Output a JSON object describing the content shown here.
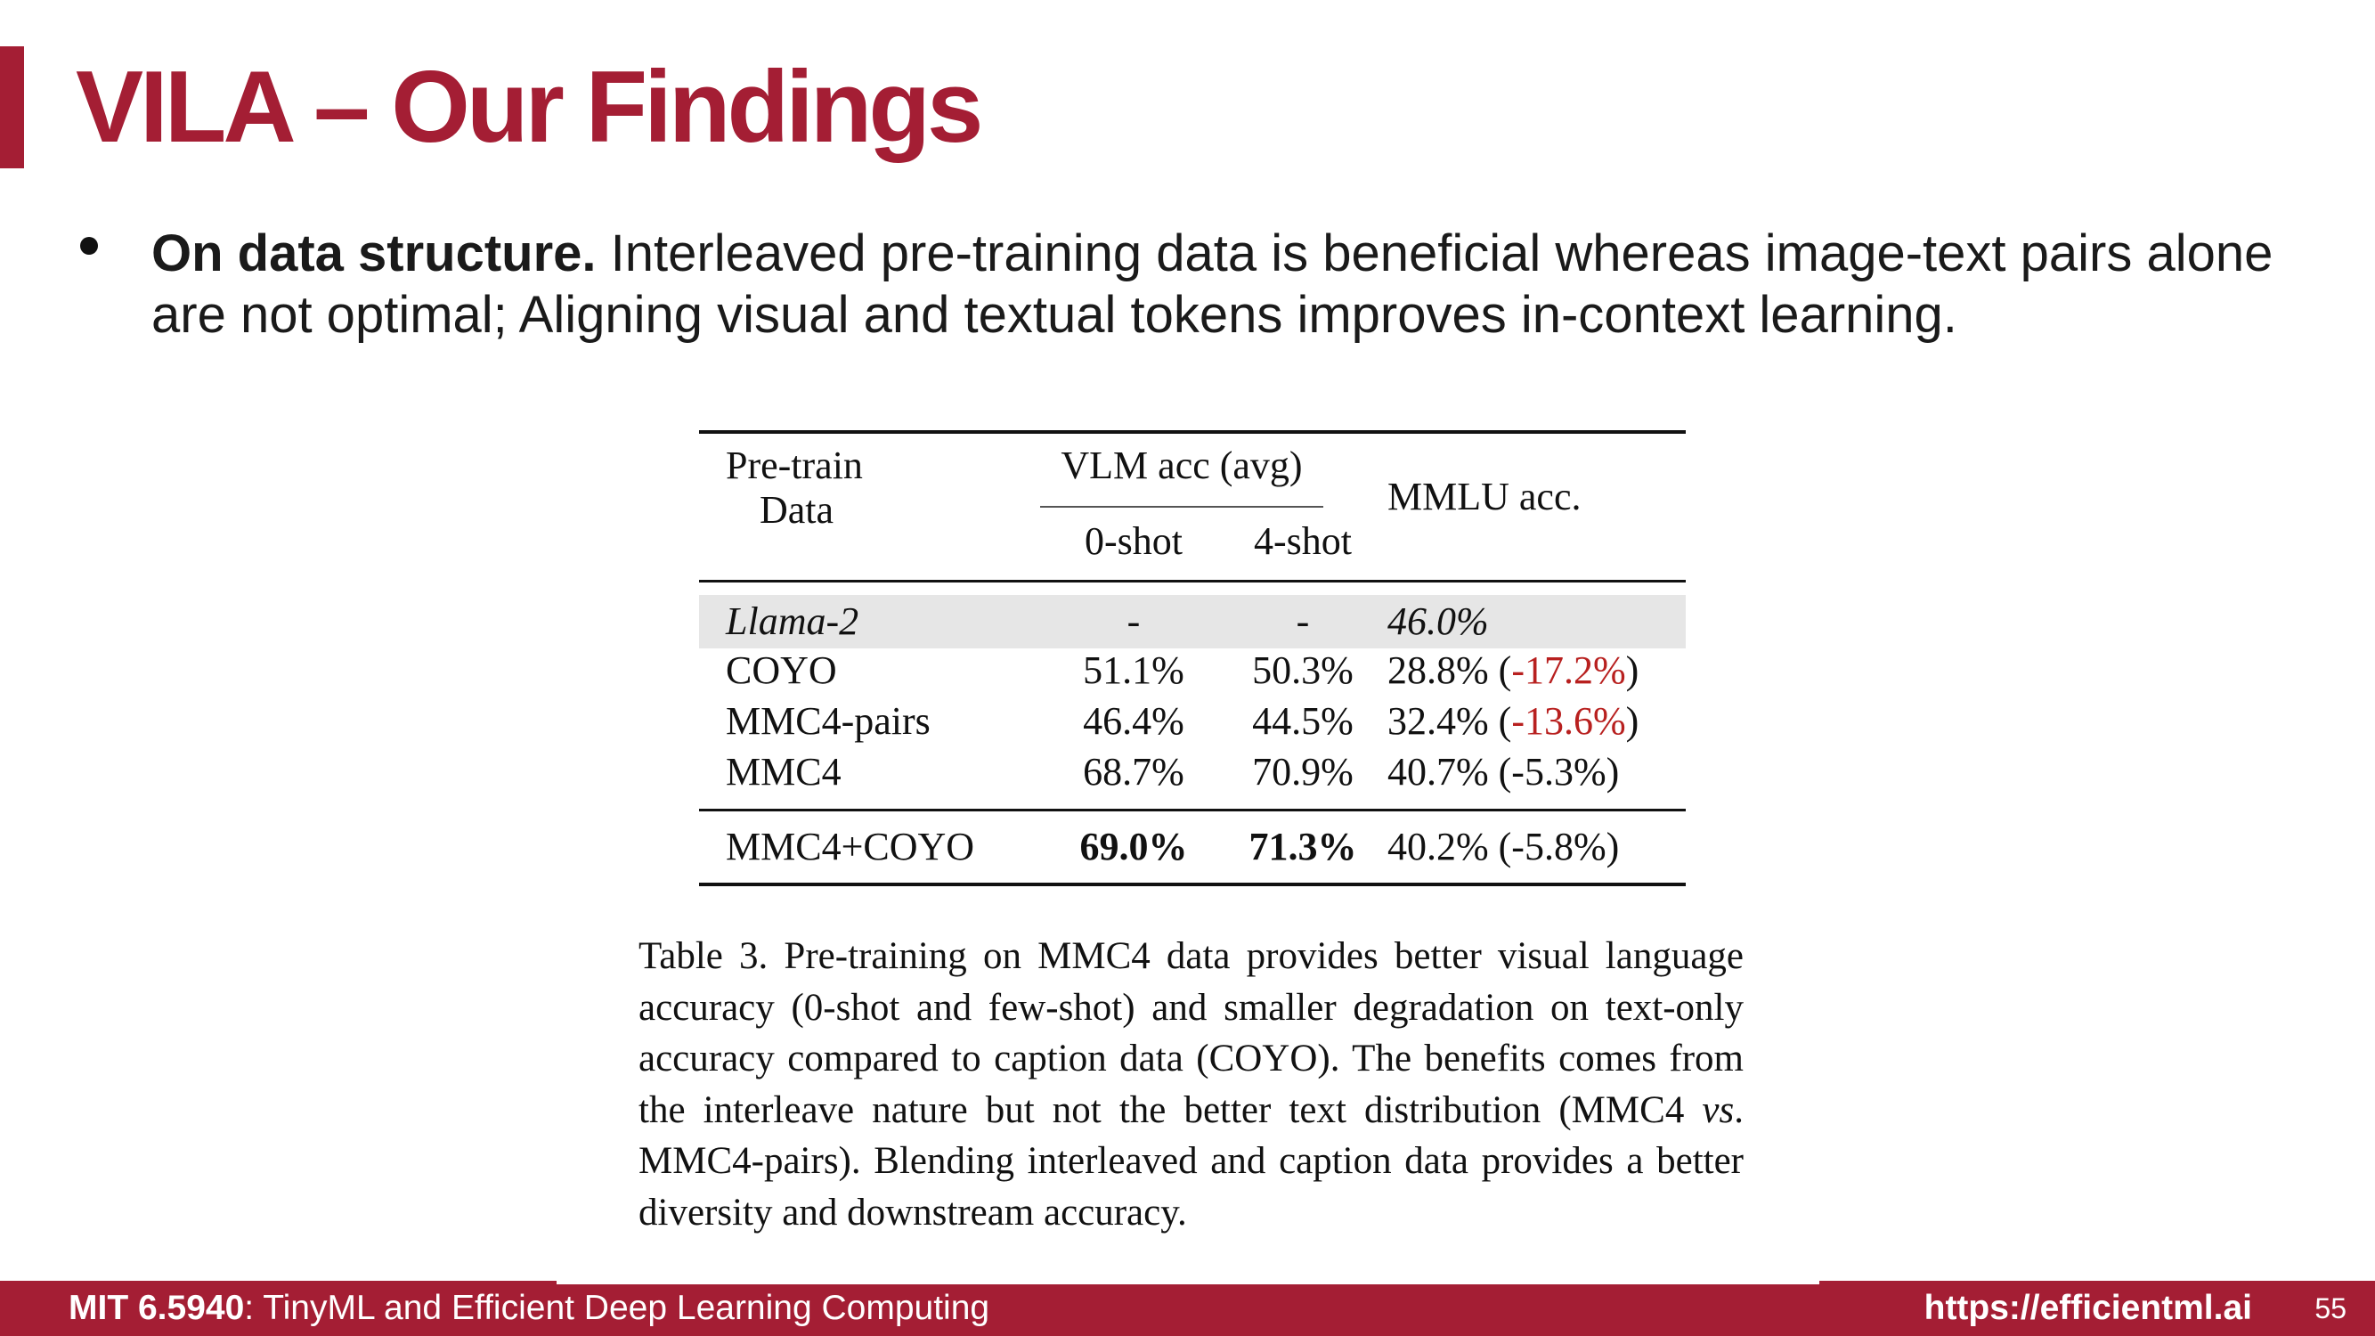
{
  "slide": {
    "title": "VILA – Our Findings",
    "bullet": {
      "bold": "On data structure.",
      "text": " Interleaved pre-training data is beneficial whereas image-text pairs alone are not optimal; Aligning visual and textual tokens improves in-context learning."
    }
  },
  "table": {
    "headers": {
      "data_line1": "Pre-train",
      "data_line2": "Data",
      "vlm_group": "VLM acc (avg)",
      "zero_shot": "0-shot",
      "four_shot": "4-shot",
      "mmlu": "MMLU acc."
    },
    "rows": [
      {
        "data": "Llama-2",
        "zero": "-",
        "four": "-",
        "mmlu": "46.0%",
        "delta_open": "",
        "delta": "",
        "delta_close": ""
      },
      {
        "data": "COYO",
        "zero": "51.1%",
        "four": "50.3%",
        "mmlu": "28.8% ",
        "delta_open": "(",
        "delta": "-17.2%",
        "delta_close": ")"
      },
      {
        "data": "MMC4-pairs",
        "zero": "46.4%",
        "four": "44.5%",
        "mmlu": "32.4% ",
        "delta_open": "(",
        "delta": "-13.6%",
        "delta_close": ")"
      },
      {
        "data": "MMC4",
        "zero": "68.7%",
        "four": "70.9%",
        "mmlu": "40.7% (-5.3%)",
        "delta_open": "",
        "delta": "",
        "delta_close": ""
      },
      {
        "data": "MMC4+COYO",
        "zero": "69.0%",
        "four": "71.3%",
        "mmlu": "40.2% (-5.8%)",
        "delta_open": "",
        "delta": "",
        "delta_close": ""
      }
    ],
    "caption": {
      "part1": "Table 3. Pre-training on MMC4 data provides better visual language accuracy (0-shot and few-shot) and smaller degradation on text-only accuracy compared to caption data (COYO). The benefits comes from the interleave nature but not the better text distribution (MMC4 ",
      "vs": "vs",
      "part2": ". MMC4-pairs). Blending interleaved and caption data provides a better diversity and downstream accuracy."
    }
  },
  "footer": {
    "course_bold": "MIT 6.5940",
    "course_rest": ": TinyML and Efficient Deep Learning Computing",
    "url": "https://efficientml.ai",
    "page": "55"
  },
  "colors": {
    "accent": "#a41e34",
    "negative": "#b8201f",
    "highlight_row": "#e6e6e6"
  }
}
